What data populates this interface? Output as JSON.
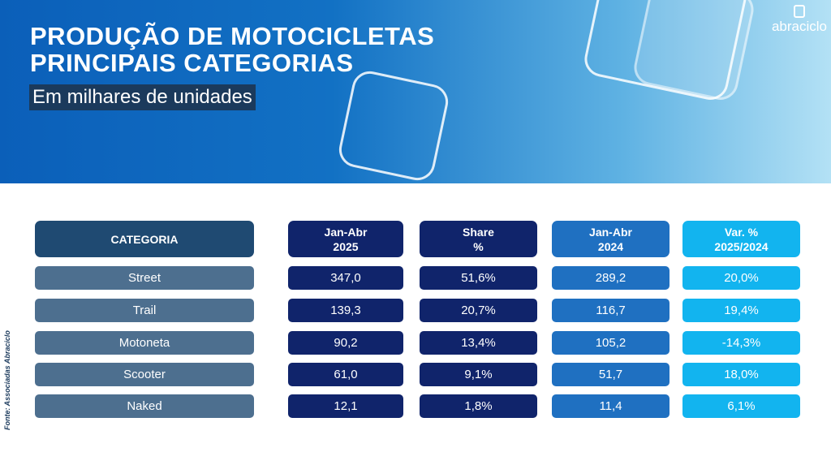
{
  "header": {
    "title_line1": "PRODUÇÃO DE MOTOCICLETAS",
    "title_line2": "PRINCIPAIS CATEGORIAS",
    "subtitle": "Em milhares de unidades",
    "logo": "abraciclo"
  },
  "source": "Fonte: Associadas Abraciclo",
  "table": {
    "headers": [
      [
        "CATEGORIA",
        ""
      ],
      [
        "Jan-Abr",
        "2025"
      ],
      [
        "Share",
        "%"
      ],
      [
        "Jan-Abr",
        "2024"
      ],
      [
        "Var. %",
        "2025/2024"
      ]
    ],
    "rows": [
      [
        "Street",
        "347,0",
        "51,6%",
        "289,2",
        "20,0%"
      ],
      [
        "Trail",
        "139,3",
        "20,7%",
        "116,7",
        "19,4%"
      ],
      [
        "Motoneta",
        "90,2",
        "13,4%",
        "105,2",
        "-14,3%"
      ],
      [
        "Scooter",
        "61,0",
        "9,1%",
        "51,7",
        "18,0%"
      ],
      [
        "Naked",
        "12,1",
        "1,8%",
        "11,4",
        "6,1%"
      ]
    ]
  },
  "colors": {
    "navy": "#10246b",
    "blue": "#1f70c1",
    "cyan": "#12b4ef",
    "category": "#4d6f8f"
  }
}
